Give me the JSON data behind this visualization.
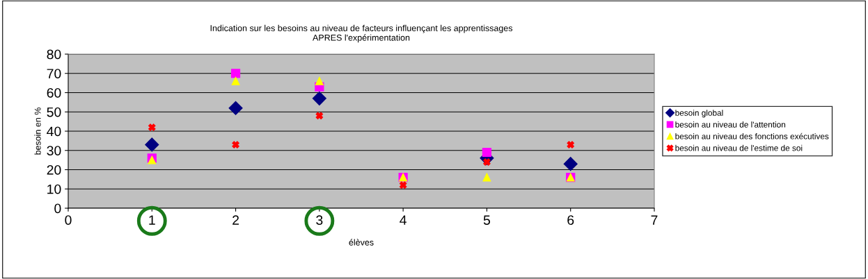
{
  "chart_data": {
    "type": "scatter",
    "title": "Indication sur les besoins au niveau de facteurs influençant les apprentissages\nAPRES l'expérimentation",
    "xlabel": "élèves",
    "ylabel": "besoin en %",
    "x": [
      1,
      2,
      3,
      4,
      5,
      6
    ],
    "series": [
      {
        "name": "besoin global",
        "color": "#000080",
        "marker": "diamond",
        "values": [
          33,
          52,
          57,
          null,
          26,
          23
        ]
      },
      {
        "name": "besoin au niveau de l'attention",
        "color": "#ff00ff",
        "marker": "square",
        "values": [
          26,
          70,
          63,
          16,
          29,
          16
        ]
      },
      {
        "name": "besoin au niveau des fonctions exécutives",
        "color": "#ffff00",
        "marker": "triangle",
        "values": [
          25,
          66,
          66,
          16,
          16,
          16
        ]
      },
      {
        "name": "besoin au niveau de l'estime de soi",
        "color": "#ff0000",
        "marker": "cross",
        "values": [
          42,
          33,
          48,
          12,
          24,
          33
        ]
      }
    ],
    "xlim": [
      0,
      7
    ],
    "xticks": [
      0,
      1,
      2,
      3,
      4,
      5,
      6,
      7
    ],
    "ylim": [
      0,
      80
    ],
    "yticks": [
      0,
      10,
      20,
      30,
      40,
      50,
      60,
      70,
      80
    ],
    "grid": "y",
    "legend": "right"
  }
}
